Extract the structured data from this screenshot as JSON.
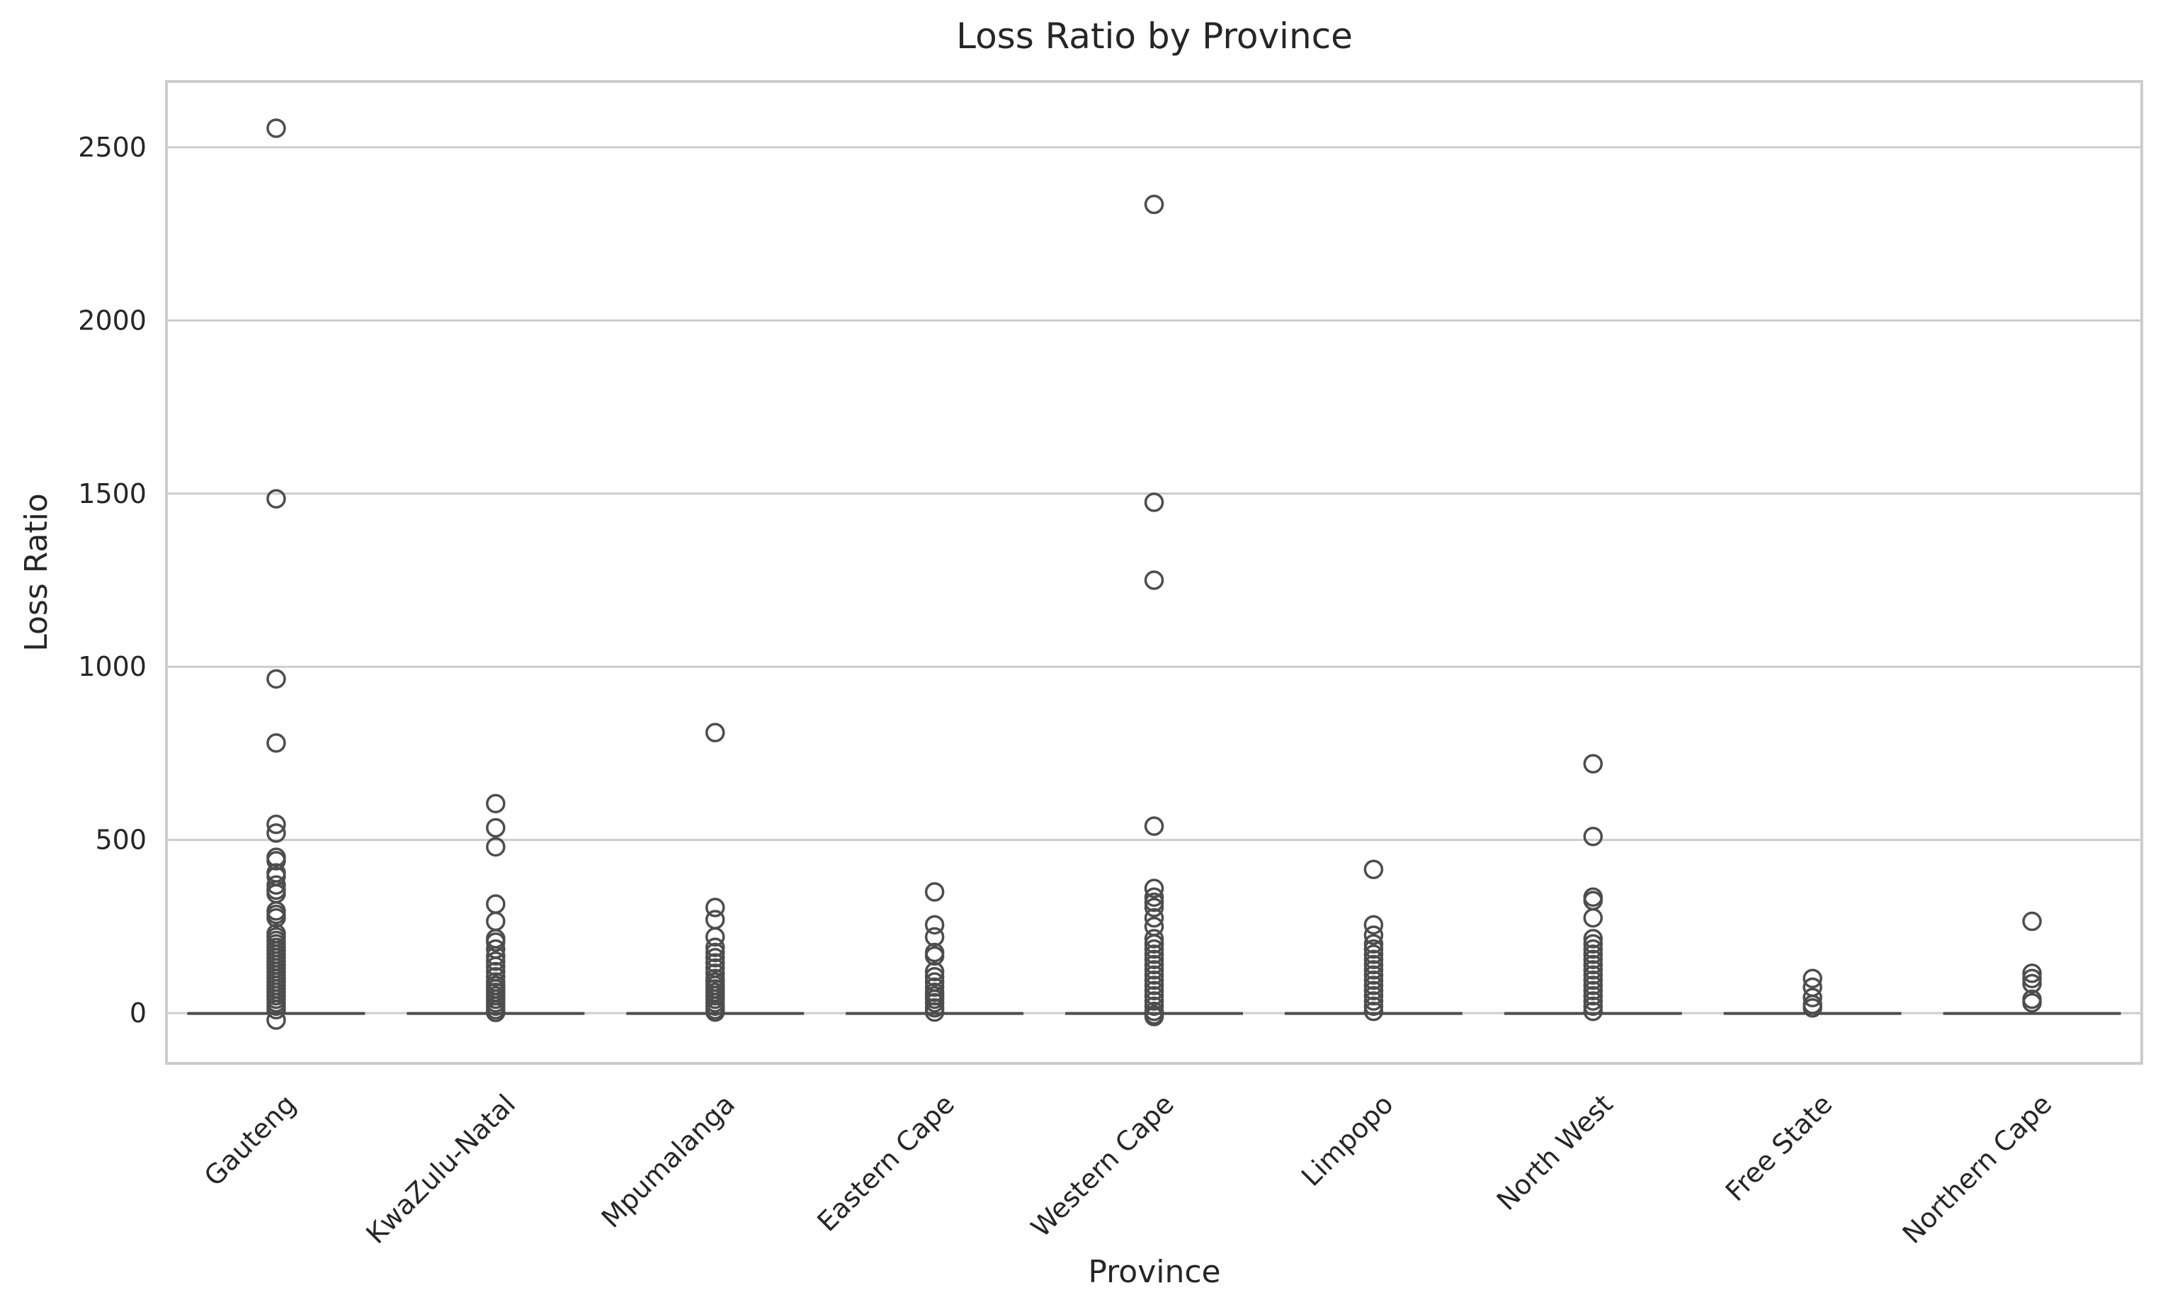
{
  "chart_data": {
    "type": "box",
    "title": "Loss Ratio by Province",
    "xlabel": "Province",
    "ylabel": "Loss Ratio",
    "ylim": [
      -145,
      2690
    ],
    "yticks": [
      0,
      500,
      1000,
      1500,
      2000,
      2500
    ],
    "grid": "horizontal",
    "categories": [
      "Gauteng",
      "KwaZulu-Natal",
      "Mpumalanga",
      "Eastern Cape",
      "Western Cape",
      "Limpopo",
      "North West",
      "Free State",
      "Northern Cape"
    ],
    "boxes": [
      {
        "category": "Gauteng",
        "q1": 0,
        "median": 0,
        "q3": 0,
        "whisker_low": 0,
        "whisker_high": 0,
        "outliers": [
          2555,
          1485,
          965,
          780,
          545,
          520,
          450,
          440,
          405,
          395,
          370,
          355,
          345,
          295,
          285,
          275,
          230,
          220,
          210,
          200,
          190,
          180,
          170,
          160,
          150,
          140,
          130,
          120,
          110,
          100,
          90,
          80,
          70,
          60,
          50,
          40,
          30,
          20,
          10,
          -20
        ]
      },
      {
        "category": "KwaZulu-Natal",
        "q1": 0,
        "median": 0,
        "q3": 0,
        "whisker_low": 0,
        "whisker_high": 0,
        "outliers": [
          605,
          535,
          480,
          315,
          265,
          215,
          205,
          185,
          165,
          150,
          135,
          120,
          105,
          90,
          80,
          70,
          60,
          50,
          40,
          30,
          20,
          10,
          2
        ]
      },
      {
        "category": "Mpumalanga",
        "q1": 0,
        "median": 0,
        "q3": 0,
        "whisker_low": 0,
        "whisker_high": 0,
        "outliers": [
          810,
          305,
          270,
          220,
          190,
          175,
          160,
          145,
          130,
          115,
          100,
          90,
          80,
          70,
          60,
          50,
          40,
          30,
          20,
          10,
          3
        ]
      },
      {
        "category": "Eastern Cape",
        "q1": 0,
        "median": 0,
        "q3": 0,
        "whisker_low": 0,
        "whisker_high": 0,
        "outliers": [
          350,
          255,
          220,
          175,
          165,
          120,
          105,
          90,
          75,
          60,
          50,
          40,
          30,
          15,
          3
        ]
      },
      {
        "category": "Western Cape",
        "q1": 0,
        "median": 0,
        "q3": 0,
        "whisker_low": 0,
        "whisker_high": 0,
        "outliers": [
          2335,
          1475,
          1250,
          540,
          360,
          335,
          320,
          305,
          275,
          250,
          215,
          200,
          185,
          170,
          155,
          140,
          125,
          110,
          95,
          80,
          65,
          50,
          35,
          20,
          5,
          -5,
          -10
        ]
      },
      {
        "category": "Limpopo",
        "q1": 0,
        "median": 0,
        "q3": 0,
        "whisker_low": 0,
        "whisker_high": 0,
        "outliers": [
          415,
          255,
          225,
          200,
          185,
          170,
          155,
          140,
          125,
          110,
          95,
          80,
          65,
          50,
          35,
          20,
          5
        ]
      },
      {
        "category": "North West",
        "q1": 0,
        "median": 0,
        "q3": 0,
        "whisker_low": 0,
        "whisker_high": 0,
        "outliers": [
          720,
          510,
          335,
          325,
          275,
          215,
          200,
          185,
          170,
          155,
          140,
          125,
          110,
          95,
          80,
          65,
          50,
          35,
          20,
          5
        ]
      },
      {
        "category": "Free State",
        "q1": 0,
        "median": 0,
        "q3": 0,
        "whisker_low": 0,
        "whisker_high": 0,
        "outliers": [
          100,
          75,
          45,
          25,
          15
        ]
      },
      {
        "category": "Northern Cape",
        "q1": 0,
        "median": 0,
        "q3": 0,
        "whisker_low": 0,
        "whisker_high": 0,
        "outliers": [
          265,
          115,
          100,
          85,
          40,
          30
        ]
      }
    ]
  }
}
